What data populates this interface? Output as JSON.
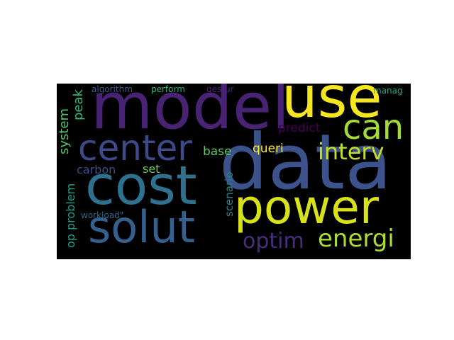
{
  "words": [
    {
      "id": "model",
      "text": "model",
      "color": "#482374",
      "vertical": false
    },
    {
      "id": "use",
      "text": "use",
      "color": "#f5e61f",
      "vertical": false
    },
    {
      "id": "data",
      "text": "data",
      "color": "#3b528b",
      "vertical": false
    },
    {
      "id": "cost",
      "text": "cost",
      "color": "#2d718e",
      "vertical": false
    },
    {
      "id": "power",
      "text": "power",
      "color": "#d8e219",
      "vertical": false
    },
    {
      "id": "solut",
      "text": "solut",
      "color": "#355f8d",
      "vertical": false
    },
    {
      "id": "center",
      "text": "center",
      "color": "#3e4989",
      "vertical": false
    },
    {
      "id": "can",
      "text": "can",
      "color": "#a5db36",
      "vertical": false
    },
    {
      "id": "interv",
      "text": "interv",
      "color": "#c2df23",
      "vertical": false
    },
    {
      "id": "energi",
      "text": "energi",
      "color": "#addc30",
      "vertical": false
    },
    {
      "id": "optim",
      "text": "optim",
      "color": "#472d7b",
      "vertical": false
    },
    {
      "id": "predict",
      "text": "predict",
      "color": "#440154",
      "vertical": false
    },
    {
      "id": "queri",
      "text": "queri",
      "color": "#fde725",
      "vertical": false
    },
    {
      "id": "base",
      "text": "base",
      "color": "#5ec962",
      "vertical": false
    },
    {
      "id": "carbon",
      "text": "carbon",
      "color": "#3e4a89",
      "vertical": false
    },
    {
      "id": "set",
      "text": "set",
      "color": "#6ece58",
      "vertical": false
    },
    {
      "id": "workload",
      "text": "workload\"",
      "color": "#31668e",
      "vertical": false
    },
    {
      "id": "algorithm",
      "text": "algorithm",
      "color": "#39568c",
      "vertical": false
    },
    {
      "id": "perform",
      "text": "perform",
      "color": "#2db27d",
      "vertical": false
    },
    {
      "id": "gestur",
      "text": "gestur",
      "color": "#482475",
      "vertical": false
    },
    {
      "id": "manag",
      "text": "manag",
      "color": "#22a884",
      "vertical": false
    },
    {
      "id": "peak",
      "text": "peak",
      "color": "#35b779",
      "vertical": true
    },
    {
      "id": "system",
      "text": "system",
      "color": "#52c569",
      "vertical": true
    },
    {
      "id": "op-problem",
      "text": "op problem",
      "color": "#1f9e89",
      "vertical": true
    },
    {
      "id": "scenario",
      "text": "scenario",
      "color": "#25838e",
      "vertical": true
    }
  ]
}
